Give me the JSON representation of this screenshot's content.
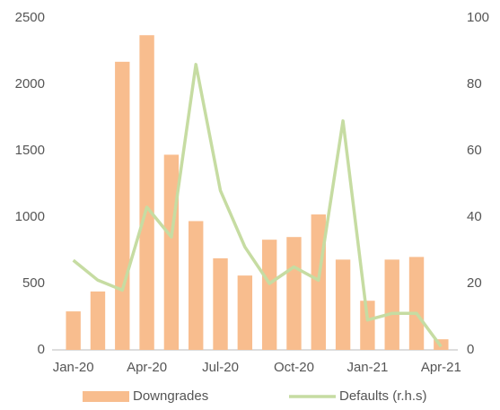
{
  "chart_data": {
    "type": "bar",
    "categories": [
      "Jan-20",
      null,
      null,
      "Apr-20",
      null,
      null,
      "Jul-20",
      null,
      null,
      "Oct-20",
      null,
      null,
      "Jan-21",
      null,
      null,
      "Apr-21"
    ],
    "series": [
      {
        "name": "Downgrades",
        "type": "bar",
        "color": "#f8bd8e",
        "values": [
          290,
          440,
          2170,
          2370,
          1470,
          970,
          690,
          560,
          830,
          850,
          1020,
          680,
          370,
          680,
          700,
          80
        ]
      },
      {
        "name": "Defaults (r.h.s)",
        "type": "line",
        "axis": "y2",
        "color": "#c6dca2",
        "values": [
          27,
          21,
          18,
          43,
          34,
          86,
          48,
          31,
          20,
          25,
          21,
          69,
          9,
          11,
          11,
          1
        ]
      }
    ],
    "ylim": [
      0,
      2500
    ],
    "yticks": [
      0,
      500,
      1000,
      1500,
      2000,
      2500
    ],
    "y2lim": [
      0,
      100
    ],
    "y2ticks": [
      0,
      20,
      40,
      60,
      80,
      100
    ],
    "grid": false,
    "legend": "bottom"
  }
}
